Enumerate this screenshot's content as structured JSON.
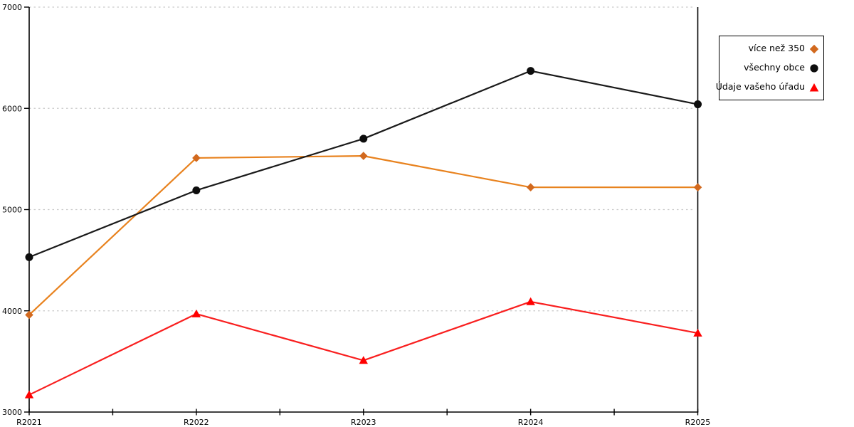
{
  "chart_data": {
    "type": "line",
    "title": "",
    "xlabel": "",
    "ylabel": "",
    "x_labels": [
      "R2021",
      "R2022",
      "R2023",
      "R2024",
      "R2025"
    ],
    "ylim": [
      3000,
      7000
    ],
    "y_ticks": [
      3000,
      4000,
      5000,
      6000,
      7000
    ],
    "grid": "horizontal-dotted",
    "legend_position": "top-right-outside",
    "series": [
      {
        "name": "více než 350",
        "marker": "diamond",
        "color": "#d2691e",
        "line_color": "#e8821e",
        "values": [
          3960,
          5510,
          5530,
          5220,
          5220
        ]
      },
      {
        "name": "všechny obce",
        "marker": "circle",
        "color": "#0d0d0d",
        "line_color": "#1a1a1a",
        "values": [
          4530,
          5190,
          5700,
          6370,
          6040
        ]
      },
      {
        "name": "Údaje vašeho úřadu",
        "marker": "triangle",
        "color": "#ff0000",
        "line_color": "#f91f1f",
        "values": [
          3170,
          3970,
          3510,
          4090,
          3780
        ]
      }
    ]
  },
  "colors": {
    "background": "#ffffff",
    "axis": "#000000",
    "gridline": "#c9c9c9",
    "tick_label": "#000000"
  }
}
